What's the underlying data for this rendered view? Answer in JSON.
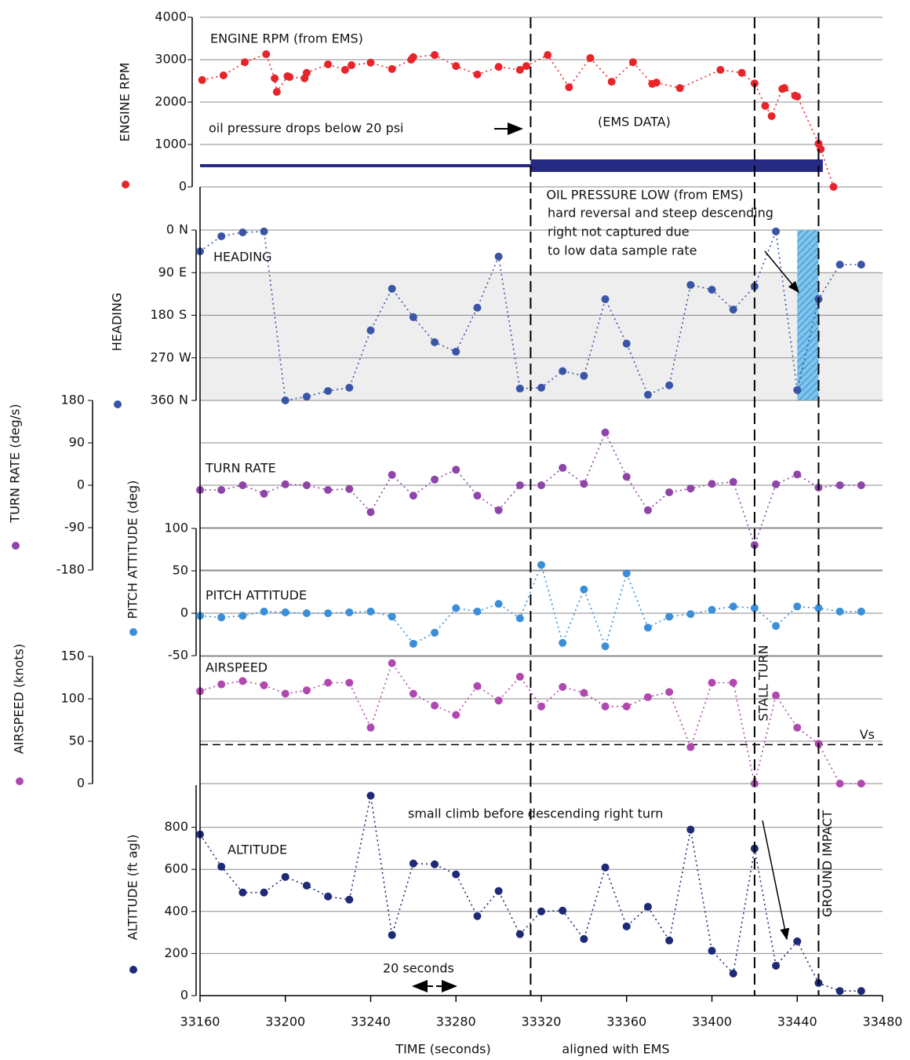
{
  "chart_data": [
    {
      "type": "line",
      "title": "ENGINE RPM (from EMS)",
      "ylabel": "ENGINE RPM",
      "color": "#e8242a",
      "x": [
        33161,
        33171,
        33181,
        33191,
        33195,
        33196,
        33201,
        33202,
        33209,
        33210,
        33220,
        33228,
        33231,
        33240,
        33250,
        33259,
        33260,
        33270,
        33280,
        33290,
        33300,
        33310,
        33313,
        33323,
        33333,
        33343,
        33353,
        33363,
        33372,
        33374,
        33385,
        33404,
        33414,
        33420,
        33425,
        33428,
        33433,
        33434,
        33439,
        33440,
        33450,
        33451,
        33457
      ],
      "values": [
        2520,
        2630,
        2940,
        3130,
        2560,
        2240,
        2610,
        2590,
        2560,
        2690,
        2890,
        2760,
        2870,
        2930,
        2780,
        3000,
        3060,
        3110,
        2850,
        2650,
        2830,
        2760,
        2850,
        3110,
        2350,
        3040,
        2480,
        2940,
        2430,
        2460,
        2330,
        2760,
        2690,
        2440,
        1910,
        1670,
        2310,
        2330,
        2150,
        2130,
        1020,
        890,
        0
      ],
      "ylim": [
        0,
        4000
      ],
      "yticks": [
        0,
        1000,
        2000,
        3000,
        4000
      ],
      "annotations": [
        "oil pressure drops below 20 psi",
        "(EMS DATA)"
      ],
      "oil_pressure_low": {
        "label": "OIL PRESSURE LOW (from EMS)",
        "x": [
          33160,
          33315,
          33452
        ],
        "level": 500
      }
    },
    {
      "type": "line",
      "title": "HEADING",
      "ylabel": "HEADING",
      "color": "#3a55a8",
      "x": [
        33160,
        33170,
        33180,
        33190,
        33200,
        33210,
        33220,
        33230,
        33240,
        33250,
        33260,
        33270,
        33280,
        33290,
        33300,
        33310,
        33320,
        33330,
        33340,
        33350,
        33360,
        33370,
        33380,
        33390,
        33400,
        33410,
        33420,
        33430,
        33440,
        33450,
        33460,
        33470
      ],
      "values": [
        45,
        13,
        5,
        3,
        360,
        352,
        340,
        333,
        212,
        124,
        184,
        237,
        257,
        164,
        56,
        335,
        333,
        298,
        308,
        146,
        240,
        348,
        328,
        116,
        126,
        168,
        119,
        3,
        338,
        146,
        73,
        73
      ],
      "ylim": [
        360,
        0
      ],
      "yticks": [
        0,
        90,
        180,
        270,
        360
      ],
      "ytick_directions": [
        "N",
        "E",
        "S",
        "W",
        "N"
      ],
      "annotations": [
        "hard reversal and steep descending",
        "right not captured due",
        "to low data sample rate"
      ],
      "shade_x": [
        33440,
        33450
      ]
    },
    {
      "type": "line",
      "title": "TURN RATE",
      "ylabel": "TURN RATE (deg/s)",
      "color": "#8e44a8",
      "x": [
        33160,
        33170,
        33180,
        33190,
        33200,
        33210,
        33220,
        33230,
        33240,
        33250,
        33260,
        33270,
        33280,
        33290,
        33300,
        33310,
        33320,
        33330,
        33340,
        33350,
        33360,
        33370,
        33380,
        33390,
        33400,
        33410,
        33420,
        33430,
        33440,
        33450,
        33460,
        33470
      ],
      "values": [
        -10,
        -10,
        0,
        -18,
        2,
        0,
        -10,
        -8,
        -57,
        22,
        -22,
        12,
        33,
        -22,
        -53,
        0,
        0,
        37,
        3,
        112,
        18,
        -53,
        -15,
        -7,
        3,
        7,
        -127,
        2,
        23,
        -5,
        0,
        0
      ],
      "ylim": [
        -180,
        180
      ],
      "yticks": [
        -180,
        -90,
        0,
        90,
        180
      ]
    },
    {
      "type": "line",
      "title": "PITCH ATTITUDE",
      "ylabel": "PITCH ATTITUDE (deg)",
      "color": "#3a8fd8",
      "x": [
        33160,
        33170,
        33180,
        33190,
        33200,
        33210,
        33220,
        33230,
        33240,
        33250,
        33260,
        33270,
        33280,
        33290,
        33300,
        33310,
        33320,
        33330,
        33340,
        33350,
        33360,
        33370,
        33380,
        33390,
        33400,
        33410,
        33420,
        33430,
        33440,
        33450,
        33460,
        33470
      ],
      "values": [
        -3,
        -5,
        -3,
        2,
        1,
        0,
        0,
        1,
        2,
        -4,
        -36,
        -23,
        6,
        2,
        11,
        -6,
        57,
        -35,
        28,
        -39,
        47,
        -17,
        -4,
        -1,
        4,
        8,
        6,
        -15,
        8,
        6,
        2,
        2
      ],
      "ylim": [
        -50,
        100
      ],
      "yticks": [
        -50,
        0,
        50,
        100
      ]
    },
    {
      "type": "line",
      "title": "AIRSPEED",
      "ylabel": "AIRSPEED (knots)",
      "color": "#b048b0",
      "x": [
        33160,
        33170,
        33180,
        33190,
        33200,
        33210,
        33220,
        33230,
        33240,
        33250,
        33260,
        33270,
        33280,
        33290,
        33300,
        33310,
        33320,
        33330,
        33340,
        33350,
        33360,
        33370,
        33380,
        33390,
        33400,
        33410,
        33420,
        33430,
        33440,
        33450,
        33460,
        33470
      ],
      "values": [
        109,
        117,
        121,
        116,
        106,
        110,
        119,
        119,
        66,
        142,
        106,
        92,
        81,
        115,
        98,
        126,
        91,
        114,
        107,
        91,
        91,
        102,
        108,
        43,
        119,
        119,
        0,
        104,
        66,
        47,
        0,
        0
      ],
      "ylim": [
        0,
        150
      ],
      "yticks": [
        0,
        50,
        100,
        150
      ],
      "reference": {
        "label": "Vs",
        "value": 46
      }
    },
    {
      "type": "line",
      "title": "ALTITUDE",
      "ylabel": "ALTITUDE (ft agl)",
      "color": "#1e2a78",
      "x": [
        33160,
        33170,
        33180,
        33190,
        33200,
        33210,
        33220,
        33230,
        33240,
        33250,
        33260,
        33270,
        33280,
        33290,
        33300,
        33310,
        33320,
        33330,
        33340,
        33350,
        33360,
        33370,
        33380,
        33390,
        33400,
        33410,
        33420,
        33430,
        33440,
        33450,
        33460,
        33470
      ],
      "values": [
        766,
        613,
        490,
        490,
        564,
        523,
        471,
        456,
        950,
        288,
        628,
        624,
        576,
        378,
        497,
        292,
        400,
        404,
        269,
        609,
        329,
        422,
        262,
        789,
        213,
        105,
        699,
        142,
        258,
        60,
        22,
        22
      ],
      "ylim": [
        0,
        1000
      ],
      "yticks": [
        0,
        200,
        400,
        600,
        800
      ],
      "annotations": [
        "small climb before descending right turn",
        "20 seconds"
      ],
      "xlim": [
        33160,
        33480
      ],
      "xticks": [
        33160,
        33200,
        33240,
        33280,
        33320,
        33360,
        33400,
        33440,
        33480
      ],
      "xlabel": [
        "TIME (seconds)",
        "aligned with EMS"
      ]
    }
  ],
  "events": [
    {
      "x": 33315
    },
    {
      "x": 33420,
      "label": "STALL TURN"
    },
    {
      "x": 33450,
      "label": "GROUND IMPACT"
    }
  ]
}
